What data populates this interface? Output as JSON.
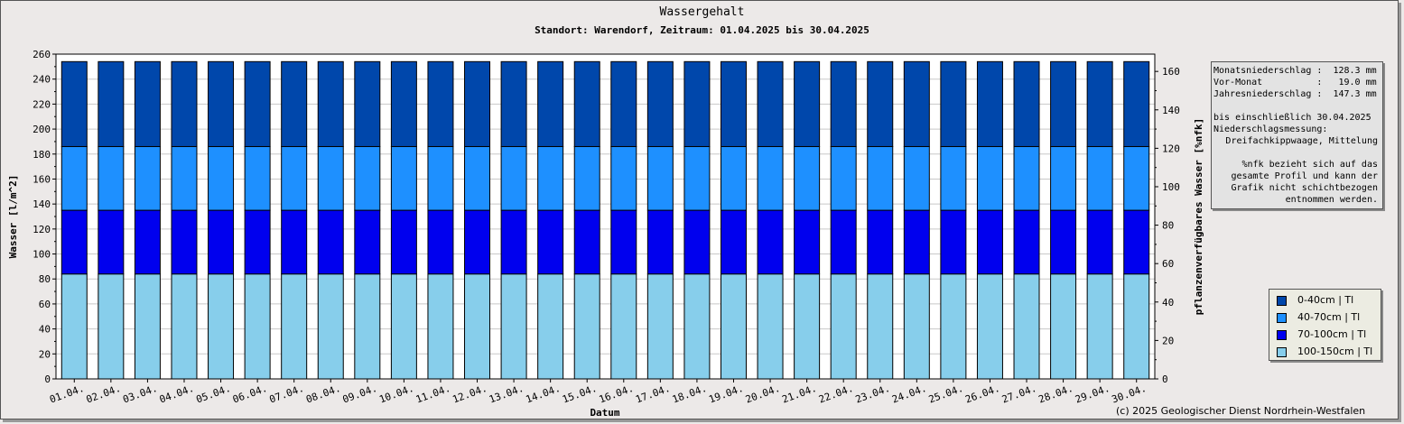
{
  "chart_data": {
    "type": "bar",
    "stacked": true,
    "title": "Wassergehalt",
    "subtitle": "Standort: Warendorf, Zeitraum: 01.04.2025 bis 30.04.2025",
    "xlabel": "Datum",
    "ylabel": "Wasser [l/m^2]",
    "y2label": "pflanzenverfügbares Wasser [%nfk]",
    "ylim": [
      0,
      260
    ],
    "y2lim": [
      0,
      169
    ],
    "yticks": [
      0,
      20,
      40,
      60,
      80,
      100,
      120,
      140,
      160,
      180,
      200,
      220,
      240,
      260
    ],
    "y2ticks": [
      0,
      20,
      40,
      60,
      80,
      100,
      120,
      140,
      160
    ],
    "grid": true,
    "legend_position": "bottom-right",
    "categories": [
      "01.04.",
      "02.04.",
      "03.04.",
      "04.04.",
      "05.04.",
      "06.04.",
      "07.04.",
      "08.04.",
      "09.04.",
      "10.04.",
      "11.04.",
      "12.04.",
      "13.04.",
      "14.04.",
      "15.04.",
      "16.04.",
      "17.04.",
      "18.04.",
      "19.04.",
      "20.04.",
      "21.04.",
      "22.04.",
      "23.04.",
      "24.04.",
      "25.04.",
      "26.04.",
      "27.04.",
      "28.04.",
      "29.04.",
      "30.04."
    ],
    "series": [
      {
        "name": "100-150cm | Tl",
        "color": "#87ceeb",
        "values": [
          84,
          84,
          84,
          84,
          84,
          84,
          84,
          84,
          84,
          84,
          84,
          84,
          84,
          84,
          84,
          84,
          84,
          84,
          84,
          84,
          84,
          84,
          84,
          84,
          84,
          84,
          84,
          84,
          84,
          84
        ]
      },
      {
        "name": "70-100cm | Tl",
        "color": "#0000ee",
        "values": [
          51,
          51,
          51,
          51,
          51,
          51,
          51,
          51,
          51,
          51,
          51,
          51,
          51,
          51,
          51,
          51,
          51,
          51,
          51,
          51,
          51,
          51,
          51,
          51,
          51,
          51,
          51,
          51,
          51,
          51
        ]
      },
      {
        "name": "40-70cm | Tl",
        "color": "#1e90ff",
        "values": [
          51,
          51,
          51,
          51,
          51,
          51,
          51,
          51,
          51,
          51,
          51,
          51,
          51,
          51,
          51,
          51,
          51,
          51,
          51,
          51,
          51,
          51,
          51,
          51,
          51,
          51,
          51,
          51,
          51,
          51
        ]
      },
      {
        "name": "0-40cm | Tl",
        "color": "#0047ab",
        "values": [
          68,
          68,
          68,
          68,
          68,
          68,
          68,
          68,
          68,
          68,
          68,
          68,
          68,
          68,
          68,
          68,
          68,
          68,
          68,
          68,
          68,
          68,
          68,
          68,
          68,
          68,
          68,
          68,
          68,
          68
        ]
      }
    ],
    "legend_order": [
      "0-40cm | Tl",
      "40-70cm | Tl",
      "70-100cm | Tl",
      "100-150cm | Tl"
    ]
  },
  "info": {
    "lines": [
      "Monatsniederschlag :  128.3 mm",
      "Vor-Monat          :   19.0 mm",
      "Jahresniederschlag :  147.3 mm",
      "bis einschließlich 30.04.2025",
      "Niederschlagsmessung:",
      "Dreifachkippwaage, Mittelung",
      "%nfk bezieht sich auf das",
      "gesamte Profil und kann der",
      "Grafik nicht schichtbezogen",
      "entnommen werden."
    ]
  },
  "copyright": "(c) 2025 Geologischer Dienst Nordrhein-Westfalen"
}
